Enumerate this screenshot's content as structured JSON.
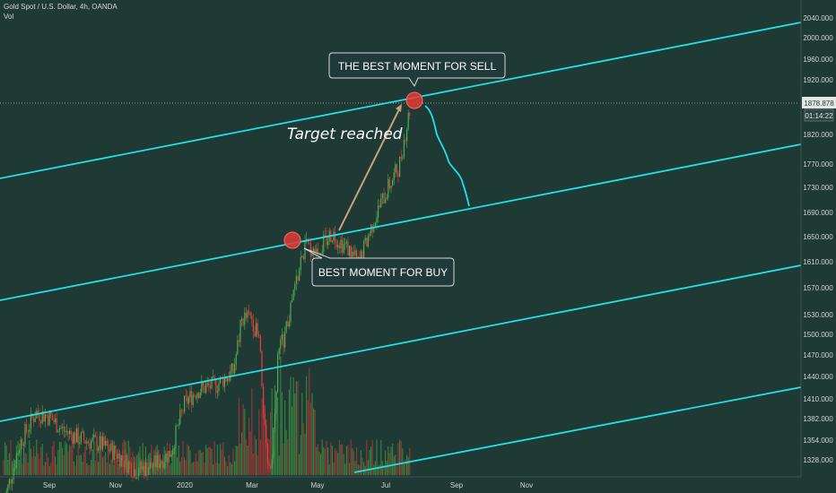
{
  "header": {
    "symbol_line": "Gold Spot / U.S. Dollar, 4h, OANDA",
    "vol_label": "Vol"
  },
  "price_axis": {
    "ticks": [
      "2040.000",
      "2000.000",
      "1960.000",
      "1920.000",
      "1860.000",
      "1820.000",
      "1770.000",
      "1730.000",
      "1690.000",
      "1650.000",
      "1610.000",
      "1570.000",
      "1530.000",
      "1500.000",
      "1470.000",
      "1440.000",
      "1410.000",
      "1382.000",
      "1354.000",
      "1328.000"
    ],
    "current_price": "1878.878",
    "countdown": "01:14:22"
  },
  "time_axis": {
    "labels": [
      "Sep",
      "Nov",
      "2020",
      "Mar",
      "May",
      "Jul",
      "Sep",
      "Nov"
    ]
  },
  "annotations": {
    "sell_label": "THE BEST MOMENT FOR SELL",
    "buy_label": "BEST MOMENT FOR BUY",
    "target_label": "Target reached"
  },
  "colors": {
    "background": "#1f3934",
    "channel": "#22e0e6",
    "up_candle": "#4caf50",
    "down_candle": "#ef3b3b",
    "marker": "#e53935",
    "arrow": "#c8a27a"
  },
  "chart_data": {
    "type": "candlestick",
    "title": "Gold Spot / U.S. Dollar, 4h, OANDA",
    "interval": "4h",
    "y_axis_ticks": [
      2040,
      2000,
      1960,
      1920,
      1860,
      1820,
      1770,
      1730,
      1690,
      1650,
      1610,
      1570,
      1530,
      1500,
      1470,
      1440,
      1410,
      1382,
      1354,
      1328
    ],
    "x_axis_labels": [
      "Sep",
      "Nov",
      "2020",
      "Mar",
      "May",
      "Jul",
      "Sep",
      "Nov"
    ],
    "current_price": 1878.878,
    "price_path": [
      {
        "x": "Aug 2019",
        "price": 1420
      },
      {
        "x": "Sep 2019",
        "price": 1530
      },
      {
        "x": "Oct 2019",
        "price": 1505
      },
      {
        "x": "Nov 2019",
        "price": 1480
      },
      {
        "x": "Dec 2019",
        "price": 1470
      },
      {
        "x": "2020",
        "price": 1560
      },
      {
        "x": "Jan 2020",
        "price": 1575
      },
      {
        "x": "Feb 2020",
        "price": 1640
      },
      {
        "x": "Mar 2020 (low)",
        "price": 1460
      },
      {
        "x": "Mar 2020",
        "price": 1650
      },
      {
        "x": "Apr 2020",
        "price": 1735
      },
      {
        "x": "May 2020",
        "price": 1715
      },
      {
        "x": "Jun 2020",
        "price": 1730
      },
      {
        "x": "Jul 2020",
        "price": 1815
      },
      {
        "x": "Jul 2020 (last)",
        "price": 1878.878
      }
    ],
    "projection": {
      "from": 1878.878,
      "to": 1690,
      "period": "Jul–Sep 2020"
    },
    "markers": [
      {
        "label": "BEST MOMENT FOR BUY",
        "price": 1640,
        "time": "Mar 2020"
      },
      {
        "label": "THE BEST MOMENT FOR SELL",
        "price": 1875,
        "time": "Jul 2020"
      }
    ],
    "indicators": [
      "Vol"
    ],
    "channel_lines": 4
  }
}
